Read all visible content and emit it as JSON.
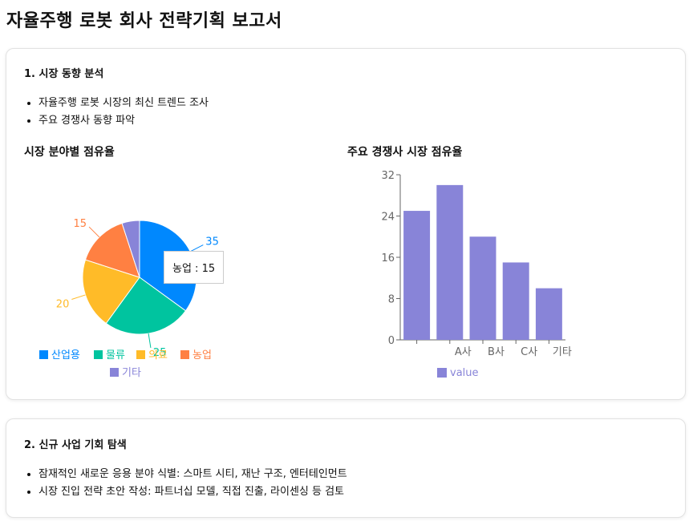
{
  "page_title": "자율주행 로봇 회사 전략기획 보고서",
  "section1": {
    "title": "1. 시장 동향 분석",
    "bullets": [
      "자율주행 로봇 시장의 최신 트렌드 조사",
      "주요 경쟁사 동향 파악"
    ]
  },
  "section2": {
    "title": "2. 신규 사업 기회 탐색",
    "bullets": [
      "잠재적인 새로운 응용 분야 식별: 스마트 시티, 재난 구조, 엔터테인먼트",
      "시장 진입 전략 초안 작성: 파트너십 모델, 직접 진출, 라이센싱 등 검토"
    ]
  },
  "tooltip": {
    "label": "농업",
    "separator": " : ",
    "value": "15"
  },
  "chart_data": [
    {
      "type": "pie",
      "title": "시장 분야별 점유율",
      "labels": [
        "산업용",
        "물류",
        "의료",
        "농업",
        "기타"
      ],
      "values": [
        35,
        25,
        20,
        15,
        5
      ],
      "colors": [
        "#0088FE",
        "#00C49F",
        "#FFBB28",
        "#FF8042",
        "#8884d8"
      ],
      "data_labels_shown": [
        35,
        25,
        20,
        15
      ],
      "legend": "bottom"
    },
    {
      "type": "bar",
      "title": "주요 경쟁사 시장 점유율",
      "categories": [
        "",
        "A사",
        "B사",
        "C사",
        "기타"
      ],
      "series": [
        {
          "name": "value",
          "values": [
            25,
            30,
            20,
            15,
            10
          ],
          "color": "#8884d8"
        }
      ],
      "yticks": [
        "0",
        "8",
        "16",
        "24",
        "32"
      ],
      "ylim": [
        0,
        32
      ],
      "legend": "bottom"
    }
  ]
}
